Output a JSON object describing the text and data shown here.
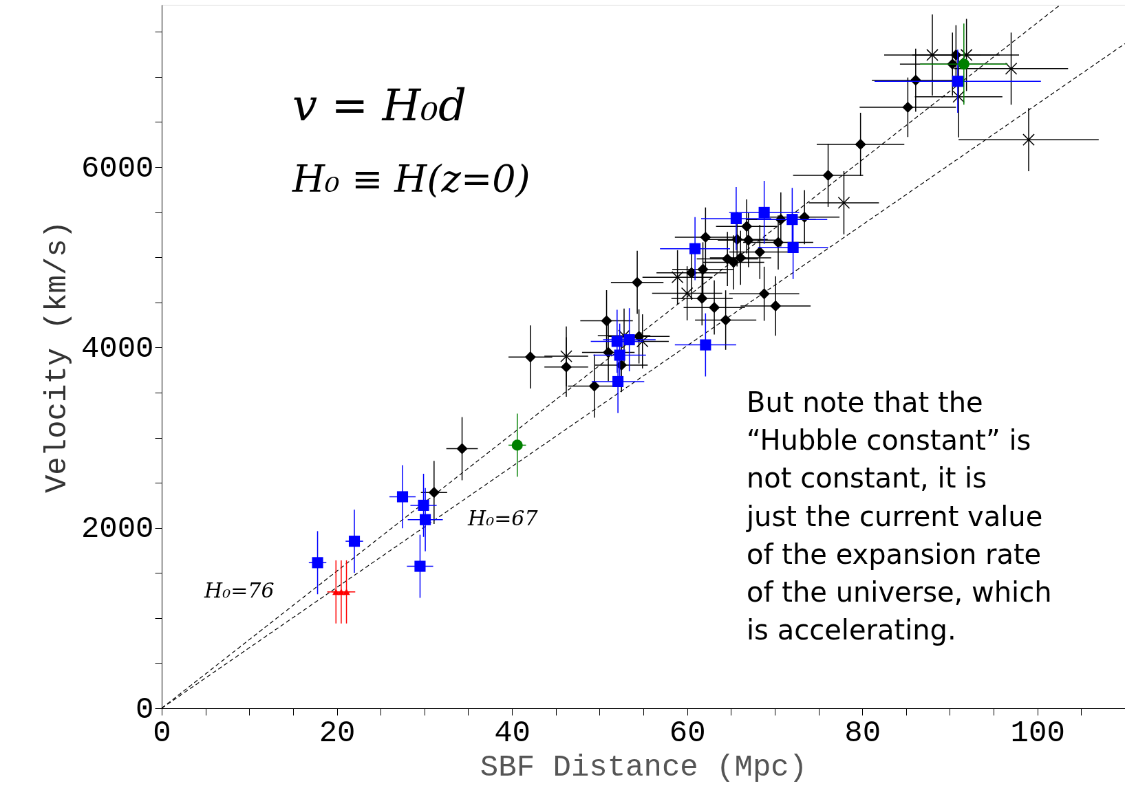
{
  "chart_data": {
    "type": "scatter",
    "xlabel": "SBF Distance (Mpc)",
    "ylabel": "Velocity (km/s)",
    "xlim": [
      0,
      110
    ],
    "ylim": [
      0,
      7800
    ],
    "xticks": [
      0,
      {
        "value": 5,
        "label": null
      },
      {
        "value": 10,
        "label": null
      },
      {
        "value": 15,
        "label": null
      },
      20,
      {
        "value": 25,
        "label": null
      },
      {
        "value": 30,
        "label": null
      },
      {
        "value": 35,
        "label": null
      },
      40,
      {
        "value": 45,
        "label": null
      },
      {
        "value": 50,
        "label": null
      },
      {
        "value": 55,
        "label": null
      },
      60,
      {
        "value": 65,
        "label": null
      },
      {
        "value": 70,
        "label": null
      },
      {
        "value": 75,
        "label": null
      },
      80,
      {
        "value": 85,
        "label": null
      },
      {
        "value": 90,
        "label": null
      },
      {
        "value": 95,
        "label": null
      },
      100,
      {
        "value": 105,
        "label": null
      }
    ],
    "yticks": [
      0,
      {
        "value": 500,
        "label": null
      },
      {
        "value": 1000,
        "label": null
      },
      {
        "value": 1500,
        "label": null
      },
      2000,
      {
        "value": 2500,
        "label": null
      },
      {
        "value": 3000,
        "label": null
      },
      {
        "value": 3500,
        "label": null
      },
      4000,
      {
        "value": 4500,
        "label": null
      },
      {
        "value": 5000,
        "label": null
      },
      {
        "value": 5500,
        "label": null
      },
      6000,
      {
        "value": 6500,
        "label": null
      },
      {
        "value": 7000,
        "label": null
      },
      {
        "value": 7500,
        "label": null
      }
    ],
    "grid": false,
    "series": [
      {
        "type": "line",
        "color": "#000000",
        "line_style": "dashed",
        "marker": "none",
        "x": [
          0,
          102.6
        ],
        "values": [
          0,
          7800
        ]
      },
      {
        "type": "line",
        "color": "#000000",
        "line_style": "dashed",
        "marker": "none",
        "x": [
          0,
          110
        ],
        "values": [
          0,
          7370
        ]
      },
      {
        "color": "#000000",
        "marker": "diamond",
        "x": [
          42.1,
          46.2,
          49.4,
          50.8,
          51.0,
          52.5,
          54.3,
          54.5,
          34.3,
          31.1,
          62.1,
          60.5,
          61.8,
          61.7,
          63.1,
          64.4,
          64.6,
          65.3,
          65.7,
          66.8,
          67.0,
          66.1,
          68.3,
          68.8,
          70.1,
          70.4,
          70.7,
          73.4,
          76.1,
          79.8,
          85.2,
          86.1,
          90.3,
          90.7
        ],
        "values": [
          3895,
          3784,
          3572,
          4296,
          3945,
          3805,
          4722,
          4123,
          2878,
          2393,
          5223,
          4829,
          4867,
          4545,
          4444,
          4304,
          4982,
          4944,
          5199,
          5343,
          5191,
          4995,
          5059,
          4596,
          4461,
          5165,
          5420,
          5445,
          5909,
          6253,
          6664,
          6964,
          7142,
          7244
        ],
        "xerrors": [
          2.5,
          2.5,
          3,
          3,
          3,
          3,
          3,
          3.5,
          1.8,
          1.5,
          3.5,
          4,
          3.5,
          3.5,
          3.5,
          3.5,
          3.5,
          3.5,
          3.5,
          3.5,
          3.5,
          3.5,
          3.5,
          4,
          4,
          4,
          4,
          4,
          4,
          5,
          5.5,
          5,
          6,
          5
        ],
        "errors": [
          350,
          330,
          350,
          340,
          320,
          300,
          350,
          300,
          350,
          350,
          330,
          300,
          300,
          300,
          300,
          330,
          300,
          300,
          300,
          300,
          300,
          300,
          300,
          300,
          330,
          300,
          300,
          300,
          350,
          350,
          330,
          350,
          350,
          330
        ]
      },
      {
        "color": "#000000",
        "marker": "cross",
        "x": [
          46.2,
          52.8,
          54.9,
          58.9,
          60.0,
          77.9,
          88.0,
          91.9,
          97.0,
          91.0,
          99.0
        ],
        "values": [
          3903,
          4131,
          4068,
          4779,
          4601,
          5605,
          7244,
          7244,
          7092,
          6781,
          6304
        ],
        "xerrors": [
          2.5,
          3,
          3,
          4,
          4,
          4,
          5.5,
          6,
          6.5,
          5,
          8
        ],
        "errors": [
          330,
          300,
          300,
          300,
          300,
          350,
          450,
          400,
          400,
          450,
          350
        ]
      },
      {
        "color": "#0000ff",
        "marker": "square",
        "x": [
          17.8,
          22.0,
          27.5,
          29.9,
          30.1,
          29.5,
          52.0,
          52.3,
          52.1,
          53.4,
          62.1,
          60.9,
          65.6,
          68.8,
          72.0,
          72.1,
          90.9
        ],
        "values": [
          1614,
          1852,
          2345,
          2250,
          2091,
          1574,
          4068,
          3915,
          3622,
          4086,
          4029,
          5096,
          5429,
          5498,
          5420,
          5109,
          6952
        ],
        "xerrors": [
          1,
          1,
          1.5,
          1.5,
          2,
          1.5,
          3,
          3,
          3,
          3,
          3.5,
          4,
          4,
          4,
          4,
          4,
          9.5
        ],
        "errors": [
          350,
          350,
          350,
          350,
          350,
          350,
          350,
          350,
          350,
          350,
          350,
          350,
          350,
          350,
          350,
          350,
          350
        ]
      },
      {
        "color": "#ff0000",
        "marker": "triangle",
        "x": [
          19.9,
          20.5,
          21.1
        ],
        "values": [
          1290,
          1290,
          1290
        ],
        "xerrors": [
          1,
          1,
          1
        ],
        "errors": [
          350,
          350,
          350
        ]
      },
      {
        "color": "#008000",
        "marker": "circle",
        "x": [
          40.6,
          91.6
        ],
        "values": [
          2917,
          7142
        ],
        "xerrors": [
          1,
          5
        ],
        "errors": [
          350,
          450
        ]
      }
    ],
    "annotations": [
      "v = H₀d",
      "H₀ ≡ H(z=0)",
      "H₀=76",
      "H₀=67",
      "But note that the “Hubble constant” is not constant, it is just the current value of the expansion rate of the universe, which is accelerating."
    ]
  }
}
